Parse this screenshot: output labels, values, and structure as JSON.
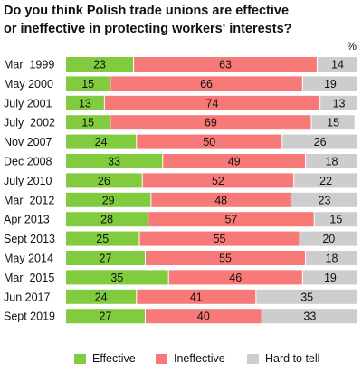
{
  "title_line1": "Do you think Polish trade unions are effective",
  "title_line2": "or ineffective in protecting workers' interests?",
  "unit": "%",
  "colors": {
    "effective": "#80cc3e",
    "ineffective": "#f77a78",
    "hard_to_tell": "#cdcdcd",
    "label_text": "#111111"
  },
  "chart_data": {
    "type": "bar",
    "orientation": "horizontal",
    "stacked": true,
    "title": "Do you think Polish trade unions are effective or ineffective in protecting workers' interests?",
    "unit": "%",
    "categories": [
      "Mar  1999",
      "May 2000",
      "July 2001",
      "July  2002",
      "Nov 2007",
      "Dec 2008",
      "July 2010",
      "Mar  2012",
      "Apr 2013",
      "Sept 2013",
      "May 2014",
      "Mar  2015",
      "Jun 2017",
      "Sept 2019"
    ],
    "series": [
      {
        "name": "Effective",
        "color": "#80cc3e",
        "values": [
          23,
          15,
          13,
          15,
          24,
          33,
          26,
          29,
          28,
          25,
          27,
          35,
          24,
          27
        ]
      },
      {
        "name": "Ineffective",
        "color": "#f77a78",
        "values": [
          63,
          66,
          74,
          69,
          50,
          49,
          52,
          48,
          57,
          55,
          55,
          46,
          41,
          40
        ]
      },
      {
        "name": "Hard to tell",
        "color": "#cdcdcd",
        "values": [
          14,
          19,
          13,
          15,
          26,
          18,
          22,
          23,
          15,
          20,
          18,
          19,
          35,
          33
        ]
      }
    ],
    "legend_position": "bottom",
    "grid": false
  }
}
